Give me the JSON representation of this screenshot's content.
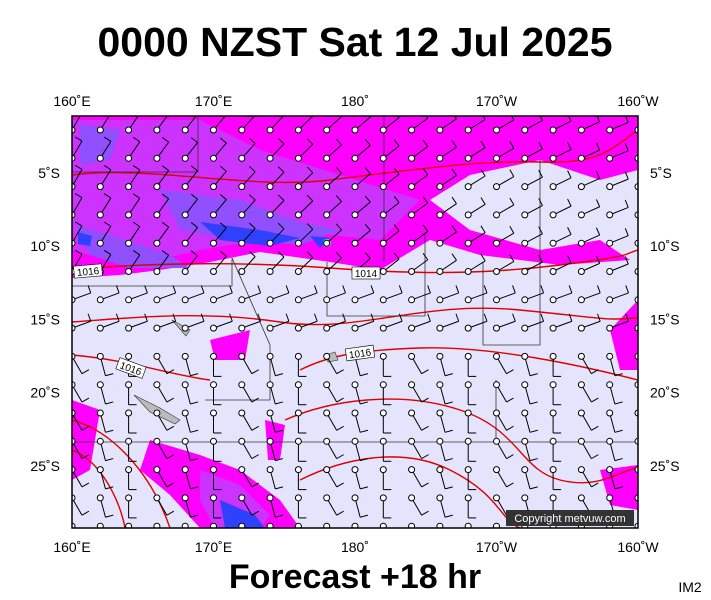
{
  "header": {
    "title": "0000 NZST Sat 12 Jul 2025"
  },
  "map": {
    "lon_labels": [
      "160˚E",
      "170˚E",
      "180˚",
      "170˚W",
      "160˚W"
    ],
    "lat_labels": [
      "5˚S",
      "10˚S",
      "15˚S",
      "20˚S",
      "25˚S"
    ],
    "isobar_labels": [
      "1016",
      "1014",
      "1016",
      "1016"
    ],
    "copyright": "Copyright metvuw.com"
  },
  "footer": {
    "caption": "Forecast +18 hr",
    "code": "IM2"
  }
}
